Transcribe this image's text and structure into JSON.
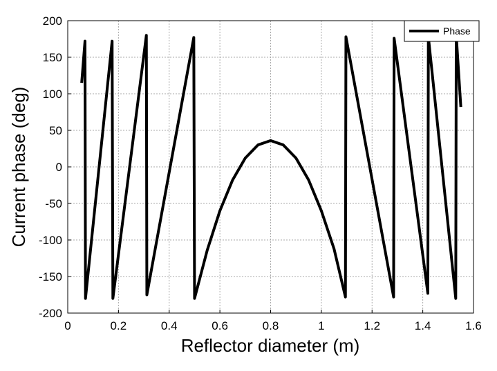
{
  "chart_data": {
    "type": "line",
    "x_label": "Reflector diameter (m)",
    "y_label": "Current phase (deg)",
    "x": [
      0.055,
      0.068,
      0.07,
      0.175,
      0.178,
      0.31,
      0.312,
      0.497,
      0.5,
      0.55,
      0.6,
      0.65,
      0.7,
      0.75,
      0.8,
      0.85,
      0.9,
      0.95,
      1.0,
      1.05,
      1.095,
      1.097,
      1.285,
      1.287,
      1.42,
      1.422,
      1.53,
      1.532,
      1.55
    ],
    "series": [
      {
        "name": "Phase",
        "color": "#000000",
        "values": [
          115,
          172,
          -180,
          172,
          -180,
          180,
          -175,
          177,
          -180,
          -114,
          -60,
          -18,
          12,
          30,
          36,
          30,
          12,
          -18,
          -60,
          -112,
          -178,
          178,
          -178,
          176,
          -173,
          178,
          -180,
          180,
          82
        ]
      }
    ],
    "xlim": [
      0,
      1.6
    ],
    "xticks": [
      0,
      0.2,
      0.4,
      0.6,
      0.8,
      1,
      1.2,
      1.4,
      1.6
    ],
    "ylim": [
      -200,
      200
    ],
    "yticks": [
      -200,
      -150,
      -100,
      -50,
      0,
      50,
      100,
      150,
      200
    ],
    "grid": true,
    "legend": "upper-right"
  }
}
